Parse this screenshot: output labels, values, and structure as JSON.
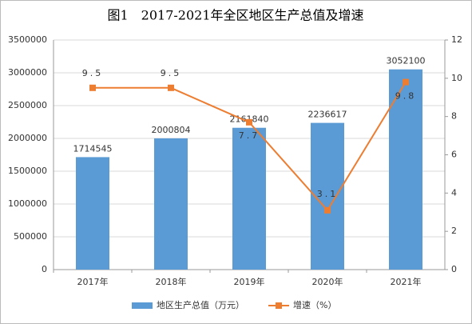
{
  "chart_data": {
    "type": "bar",
    "title": "图1　2017-2021年全区地区生产总值及增速",
    "categories": [
      "2017年",
      "2018年",
      "2019年",
      "2020年",
      "2021年"
    ],
    "series": [
      {
        "name": "地区生产总值（万元）",
        "type": "bar",
        "color": "#5b9bd5",
        "values": [
          1714545,
          2000804,
          2161840,
          2236617,
          3052100
        ]
      },
      {
        "name": "增速（%）",
        "type": "line",
        "axis": "y2",
        "color": "#ed7d31",
        "values": [
          9.5,
          9.5,
          7.7,
          3.1,
          9.8
        ]
      }
    ],
    "ylim": [
      0,
      3500000
    ],
    "yticks": [
      0,
      500000,
      1000000,
      1500000,
      2000000,
      2500000,
      3000000,
      3500000
    ],
    "y2lim": [
      0,
      12
    ],
    "y2ticks": [
      0,
      2,
      4,
      6,
      8,
      10,
      12
    ],
    "grid": true,
    "legend": "bottom"
  }
}
